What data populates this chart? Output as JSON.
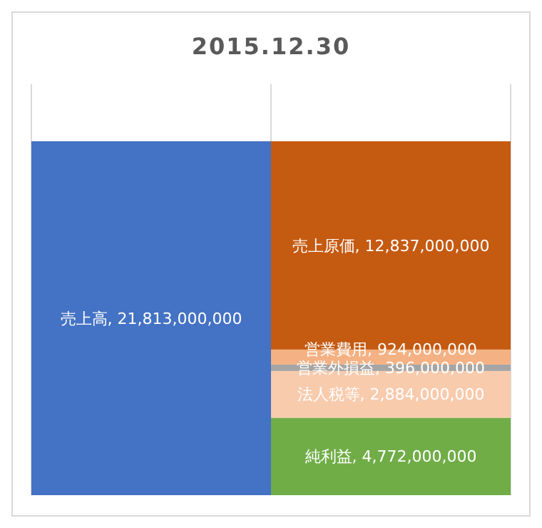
{
  "chart_data": {
    "type": "bar",
    "title": "2015.12.30",
    "categories": [
      null,
      null
    ],
    "stacked": true,
    "grid": "x",
    "series": [
      {
        "name": "売上高",
        "color": "#4472c4",
        "values": [
          21813000000,
          null
        ],
        "value_labels": [
          ", 21,813,000,000",
          null
        ]
      },
      {
        "name": "純利益",
        "color": "#70ad47",
        "values": [
          null,
          4772000000
        ],
        "value_labels": [
          null,
          ", 4,772,000,000"
        ]
      },
      {
        "name": "法人税等",
        "color": "#f8cbad",
        "values": [
          null,
          2884000000
        ],
        "value_labels": [
          null,
          ", 2,884,000,000"
        ]
      },
      {
        "name": "営業外損益",
        "color": "#a5a5a5",
        "values": [
          null,
          396000000
        ],
        "value_labels": [
          null,
          ", 396,000,000"
        ]
      },
      {
        "name": "営業費用",
        "color": "#f4b183",
        "values": [
          null,
          924000000
        ],
        "value_labels": [
          null,
          ", 924,000,000"
        ]
      },
      {
        "name": "売上原価",
        "color": "#c55a11",
        "values": [
          null,
          12837000000
        ],
        "value_labels": [
          null,
          ", 12,837,000,000"
        ]
      }
    ]
  }
}
